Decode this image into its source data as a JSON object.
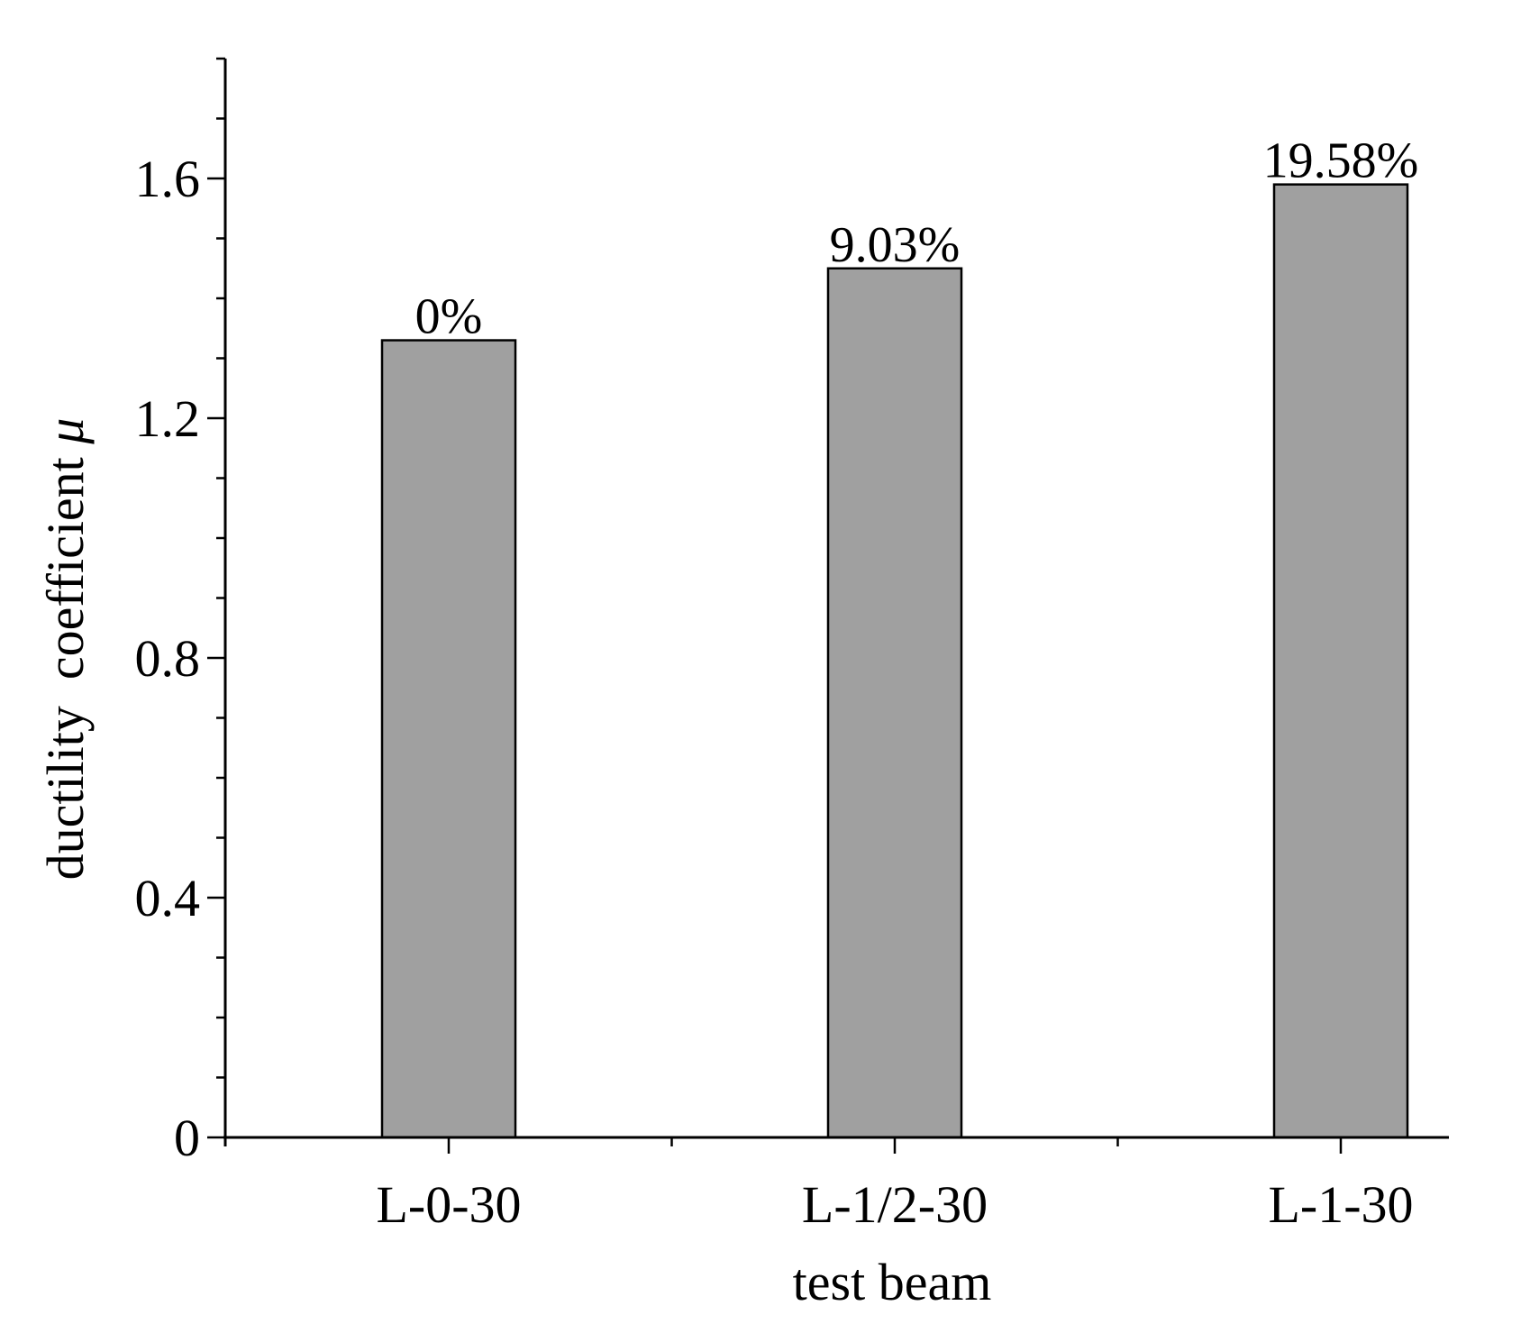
{
  "chart_data": {
    "type": "bar",
    "categories": [
      "L-0-30",
      "L-1/2-30",
      "L-1-30"
    ],
    "values": [
      1.33,
      1.45,
      1.59
    ],
    "data_labels": [
      "0%",
      "9.03%",
      "19.58%"
    ],
    "xlabel": "test beam",
    "ylabel_text": "ductility  coefficient ",
    "ylabel_symbol": "μ",
    "ylim": [
      0,
      1.8
    ],
    "yticks": [
      0,
      0.4,
      0.8,
      1.2,
      1.6
    ],
    "ytick_labels": [
      "0",
      "0.4",
      "0.8",
      "1.2",
      "1.6"
    ],
    "grid": false,
    "legend": "none",
    "bar_color": "#a0a0a0"
  }
}
